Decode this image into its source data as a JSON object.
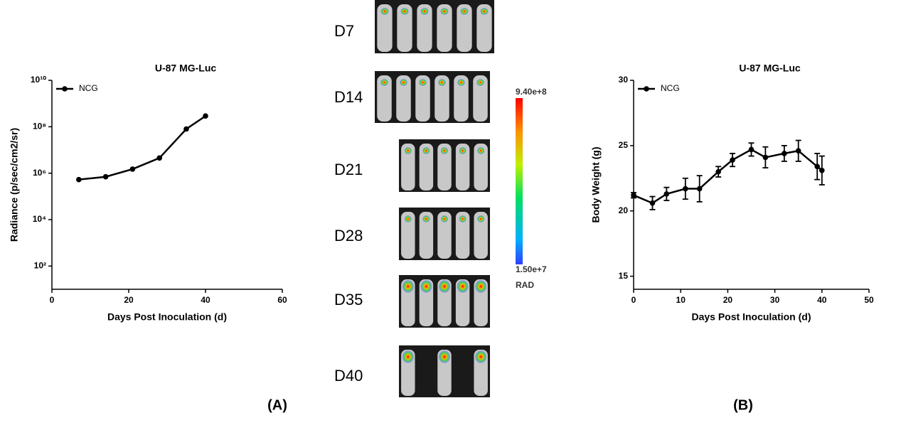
{
  "chart_data": [
    {
      "type": "line",
      "title": "U-87 MG-Luc",
      "xlabel": "Days Post Inoculation (d)",
      "ylabel": "Radiance (p/sec/cm2/sr)",
      "log_y": true,
      "xlim": [
        0,
        60
      ],
      "xticks": [
        0,
        20,
        40,
        60
      ],
      "ylim": [
        10,
        10000000000
      ],
      "yticks": [
        {
          "value": 100,
          "label": "10²"
        },
        {
          "value": 10000,
          "label": "10⁴"
        },
        {
          "value": 1000000,
          "label": "10⁶"
        },
        {
          "value": 100000000,
          "label": "10⁸"
        },
        {
          "value": 10000000000,
          "label": "10¹⁰"
        }
      ],
      "legend": "top-left",
      "x": [
        7,
        14,
        21,
        28,
        35,
        40
      ],
      "series": [
        {
          "name": "NCG",
          "color": "#000000",
          "values": [
            530000,
            700000,
            1500000,
            4500000,
            80000000,
            290000000
          ]
        }
      ]
    },
    {
      "type": "line",
      "title": "U-87 MG-Luc",
      "xlabel": "Days Post Inoculation (d)",
      "ylabel": "Body Weight (g)",
      "log_y": false,
      "xlim": [
        0,
        50
      ],
      "xticks": [
        0,
        10,
        20,
        30,
        40,
        50
      ],
      "ylim": [
        14,
        30
      ],
      "yticks": [
        15,
        20,
        25,
        30
      ],
      "legend": "top-left",
      "x": [
        0,
        4,
        7,
        11,
        14,
        18,
        21,
        25,
        28,
        32,
        35,
        39,
        40
      ],
      "series": [
        {
          "name": "NCG",
          "color": "#000000",
          "values": [
            21.2,
            20.6,
            21.3,
            21.7,
            21.7,
            23.0,
            23.9,
            24.7,
            24.1,
            24.4,
            24.6,
            23.4,
            23.1
          ],
          "errors": [
            0.2,
            0.5,
            0.5,
            0.8,
            1.0,
            0.4,
            0.5,
            0.5,
            0.8,
            0.6,
            0.8,
            1.0,
            1.1
          ]
        }
      ]
    }
  ],
  "imaging": {
    "days": [
      "D7",
      "D14",
      "D21",
      "D28",
      "D35",
      "D40"
    ],
    "colorbar": {
      "max": "9.40e+8",
      "min": "1.50e+7",
      "unit": "RAD"
    }
  },
  "panels": [
    "(A)",
    "(B)"
  ]
}
